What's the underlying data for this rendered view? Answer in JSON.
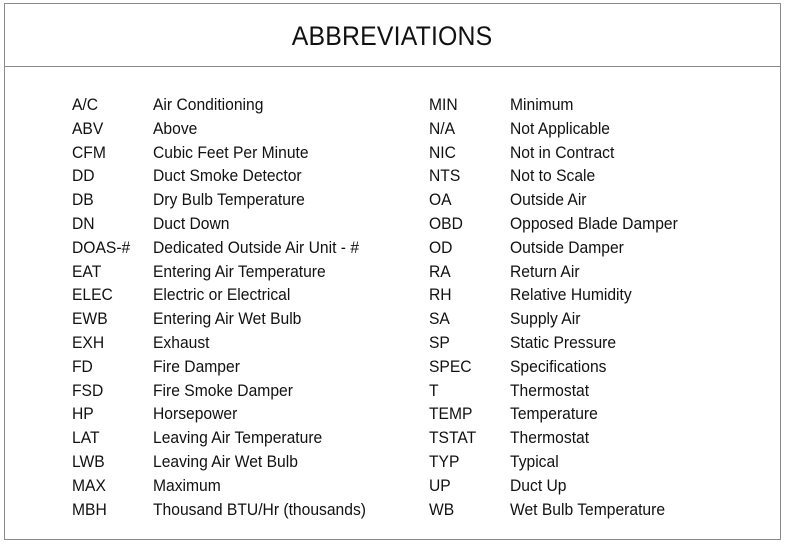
{
  "title": "ABBREVIATIONS",
  "left_column": [
    {
      "abbr": "A/C",
      "meaning": "Air Conditioning"
    },
    {
      "abbr": "ABV",
      "meaning": "Above"
    },
    {
      "abbr": "CFM",
      "meaning": "Cubic Feet Per Minute"
    },
    {
      "abbr": "DD",
      "meaning": "Duct Smoke Detector"
    },
    {
      "abbr": "DB",
      "meaning": "Dry Bulb Temperature"
    },
    {
      "abbr": "DN",
      "meaning": "Duct Down"
    },
    {
      "abbr": "DOAS-#",
      "meaning": "Dedicated Outside Air Unit - #"
    },
    {
      "abbr": "EAT",
      "meaning": "Entering Air Temperature"
    },
    {
      "abbr": "ELEC",
      "meaning": "Electric or Electrical"
    },
    {
      "abbr": "EWB",
      "meaning": "Entering Air Wet Bulb"
    },
    {
      "abbr": "EXH",
      "meaning": "Exhaust"
    },
    {
      "abbr": "FD",
      "meaning": "Fire Damper"
    },
    {
      "abbr": "FSD",
      "meaning": "Fire Smoke Damper"
    },
    {
      "abbr": "HP",
      "meaning": "Horsepower"
    },
    {
      "abbr": "LAT",
      "meaning": "Leaving Air Temperature"
    },
    {
      "abbr": "LWB",
      "meaning": "Leaving Air Wet Bulb"
    },
    {
      "abbr": "MAX",
      "meaning": "Maximum"
    },
    {
      "abbr": "MBH",
      "meaning": "Thousand BTU/Hr (thousands)"
    }
  ],
  "right_column": [
    {
      "abbr": "MIN",
      "meaning": "Minimum"
    },
    {
      "abbr": "N/A",
      "meaning": "Not Applicable"
    },
    {
      "abbr": "NIC",
      "meaning": "Not in Contract"
    },
    {
      "abbr": "NTS",
      "meaning": "Not to Scale"
    },
    {
      "abbr": "OA",
      "meaning": "Outside Air"
    },
    {
      "abbr": "OBD",
      "meaning": "Opposed Blade Damper"
    },
    {
      "abbr": "OD",
      "meaning": "Outside Damper"
    },
    {
      "abbr": "RA",
      "meaning": "Return Air"
    },
    {
      "abbr": "RH",
      "meaning": "Relative Humidity"
    },
    {
      "abbr": "SA",
      "meaning": "Supply Air"
    },
    {
      "abbr": "SP",
      "meaning": "Static Pressure"
    },
    {
      "abbr": "SPEC",
      "meaning": "Specifications"
    },
    {
      "abbr": "T",
      "meaning": "Thermostat"
    },
    {
      "abbr": "TEMP",
      "meaning": "Temperature"
    },
    {
      "abbr": "TSTAT",
      "meaning": "Thermostat"
    },
    {
      "abbr": "TYP",
      "meaning": "Typical"
    },
    {
      "abbr": "UP",
      "meaning": "Duct Up"
    },
    {
      "abbr": "WB",
      "meaning": "Wet Bulb Temperature"
    }
  ]
}
